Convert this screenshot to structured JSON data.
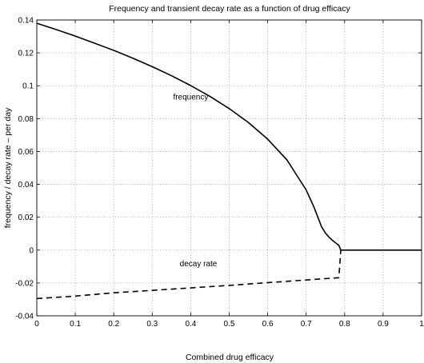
{
  "chart_data": {
    "type": "line",
    "title": "Frequency and transient decay rate as a function of drug efficacy",
    "xlabel": "Combined drug efficacy",
    "ylabel": "frequency / decay rate – per day",
    "xlim": [
      0,
      1
    ],
    "ylim": [
      -0.04,
      0.14
    ],
    "xticks": [
      0,
      0.1,
      0.2,
      0.3,
      0.4,
      0.5,
      0.6,
      0.7,
      0.8,
      0.9,
      1
    ],
    "xtick_labels": [
      "0",
      "0.1",
      "0.2",
      "0.3",
      "0.4",
      "0.5",
      "0.6",
      "0.7",
      "0.8",
      "0.9",
      "1"
    ],
    "yticks": [
      -0.04,
      -0.02,
      0,
      0.02,
      0.04,
      0.06,
      0.08,
      0.1,
      0.12,
      0.14
    ],
    "ytick_labels": [
      "-0.04",
      "-0.02",
      "0",
      "0.02",
      "0.04",
      "0.06",
      "0.08",
      "0.1",
      "0.12",
      "0.14"
    ],
    "grid": true,
    "series": [
      {
        "style": "solid",
        "color": "#000000",
        "x": [
          0,
          0.05,
          0.1,
          0.15,
          0.2,
          0.25,
          0.3,
          0.35,
          0.4,
          0.45,
          0.5,
          0.55,
          0.6,
          0.65,
          0.7,
          0.72,
          0.74,
          0.75,
          0.76,
          0.77,
          0.775,
          0.78,
          0.785,
          0.79,
          0.8,
          0.85,
          0.9,
          0.95,
          1
        ],
        "y": [
          0.138,
          0.1342,
          0.1302,
          0.1259,
          0.1215,
          0.1167,
          0.1116,
          0.1061,
          0.1001,
          0.0935,
          0.0861,
          0.0776,
          0.0675,
          0.0549,
          0.0366,
          0.0263,
          0.0142,
          0.0104,
          0.0077,
          0.0056,
          0.0047,
          0.0038,
          0.0029,
          0,
          0,
          0,
          0,
          0,
          0
        ]
      },
      {
        "style": "dashed",
        "color": "#000000",
        "x": [
          0,
          0.1,
          0.2,
          0.3,
          0.4,
          0.5,
          0.6,
          0.7,
          0.785,
          0.79
        ],
        "y": [
          -0.0295,
          -0.028,
          -0.026,
          -0.0245,
          -0.023,
          -0.0215,
          -0.0198,
          -0.0182,
          -0.0168,
          0
        ]
      }
    ],
    "annotations": [
      {
        "text": "frequency",
        "x": 0.4,
        "y": 0.0915
      },
      {
        "text": "decay rate",
        "x": 0.42,
        "y": -0.0098
      }
    ]
  }
}
